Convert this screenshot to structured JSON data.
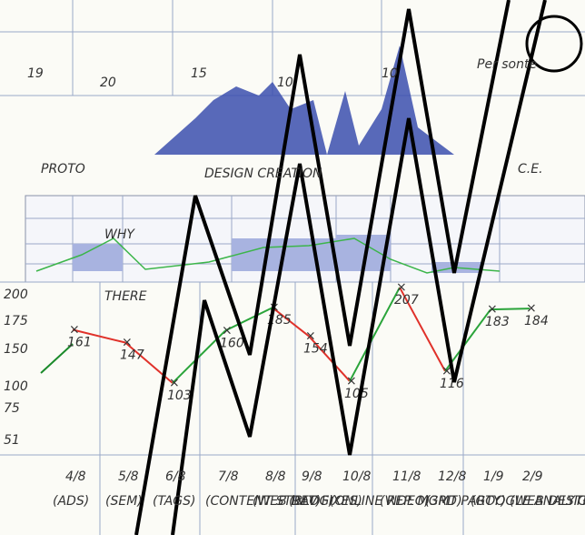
{
  "top": {
    "numbers": [
      "19",
      "20",
      "15",
      "10",
      "10"
    ],
    "note": "Per sonte",
    "labels": [
      "PROTO",
      "DESIGN CREATION",
      "C.E."
    ]
  },
  "middle": {
    "words": [
      "WHY",
      "THERE"
    ]
  },
  "bottom": {
    "yticks": [
      "200",
      "175",
      "150",
      "100",
      "75",
      "51"
    ],
    "points": [
      161,
      147,
      103,
      160,
      185,
      154,
      105,
      207,
      116,
      183,
      184
    ],
    "dates": [
      "4/8",
      "5/8",
      "6/8",
      "7/8",
      "8/8",
      "9/8",
      "10/8",
      "11/8",
      "12/8",
      "1/9",
      "2/9"
    ],
    "tags": [
      "(ADS)",
      "(SEM)",
      "(TAGS)",
      "(CONTENT STRAT)",
      "(WEB DEV FIXES)",
      "(BLOG)",
      "(ONLINE REP. MGMT)",
      "(VIDEO)",
      "(3RD PARTY)",
      "(GOOGLE ANALYTICS)",
      "(WEB DESIGN)"
    ]
  }
}
